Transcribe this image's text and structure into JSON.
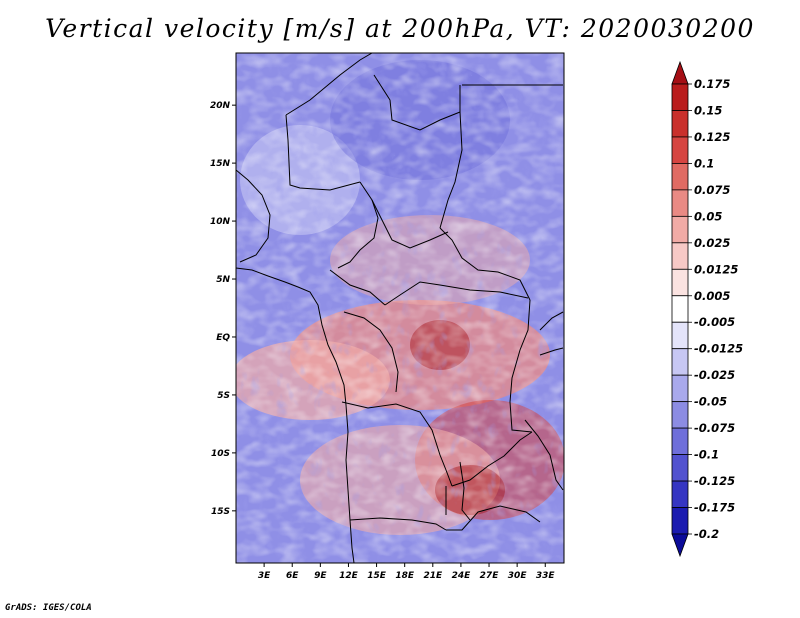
{
  "title": "Vertical velocity [m/s] at 200hPa, VT: 2020030200",
  "credit": "GrADS: IGES/COLA",
  "map": {
    "lat_labels": [
      "20N",
      "15N",
      "10N",
      "5N",
      "EQ",
      "5S",
      "10S",
      "15S"
    ],
    "lat_values": [
      20,
      15,
      10,
      5,
      0,
      -5,
      -10,
      -15
    ],
    "lon_labels": [
      "3E",
      "6E",
      "9E",
      "12E",
      "15E",
      "18E",
      "21E",
      "24E",
      "27E",
      "30E",
      "33E"
    ],
    "lon_values": [
      3,
      6,
      9,
      12,
      15,
      18,
      21,
      24,
      27,
      30,
      33
    ],
    "lat_range": [
      -19.5,
      24.5
    ],
    "lon_range": [
      0,
      35
    ]
  },
  "colorbar": {
    "labels": [
      "0.175",
      "0.15",
      "0.125",
      "0.1",
      "0.075",
      "0.05",
      "0.025",
      "0.0125",
      "0.005",
      "-0.005",
      "-0.0125",
      "-0.025",
      "-0.05",
      "-0.075",
      "-0.1",
      "-0.125",
      "-0.175",
      "-0.2"
    ],
    "colors": [
      "#a50f15",
      "#b91c1c",
      "#c9302c",
      "#d64541",
      "#e06b63",
      "#e98a84",
      "#f1aba6",
      "#f7c9c6",
      "#fbe3e1",
      "#ffffff",
      "#e4e4fa",
      "#c7c7f3",
      "#a9a9ec",
      "#8c8ce3",
      "#6f6fda",
      "#5252cf",
      "#3535c2",
      "#1b1bb0",
      "#0b0b99"
    ]
  }
}
